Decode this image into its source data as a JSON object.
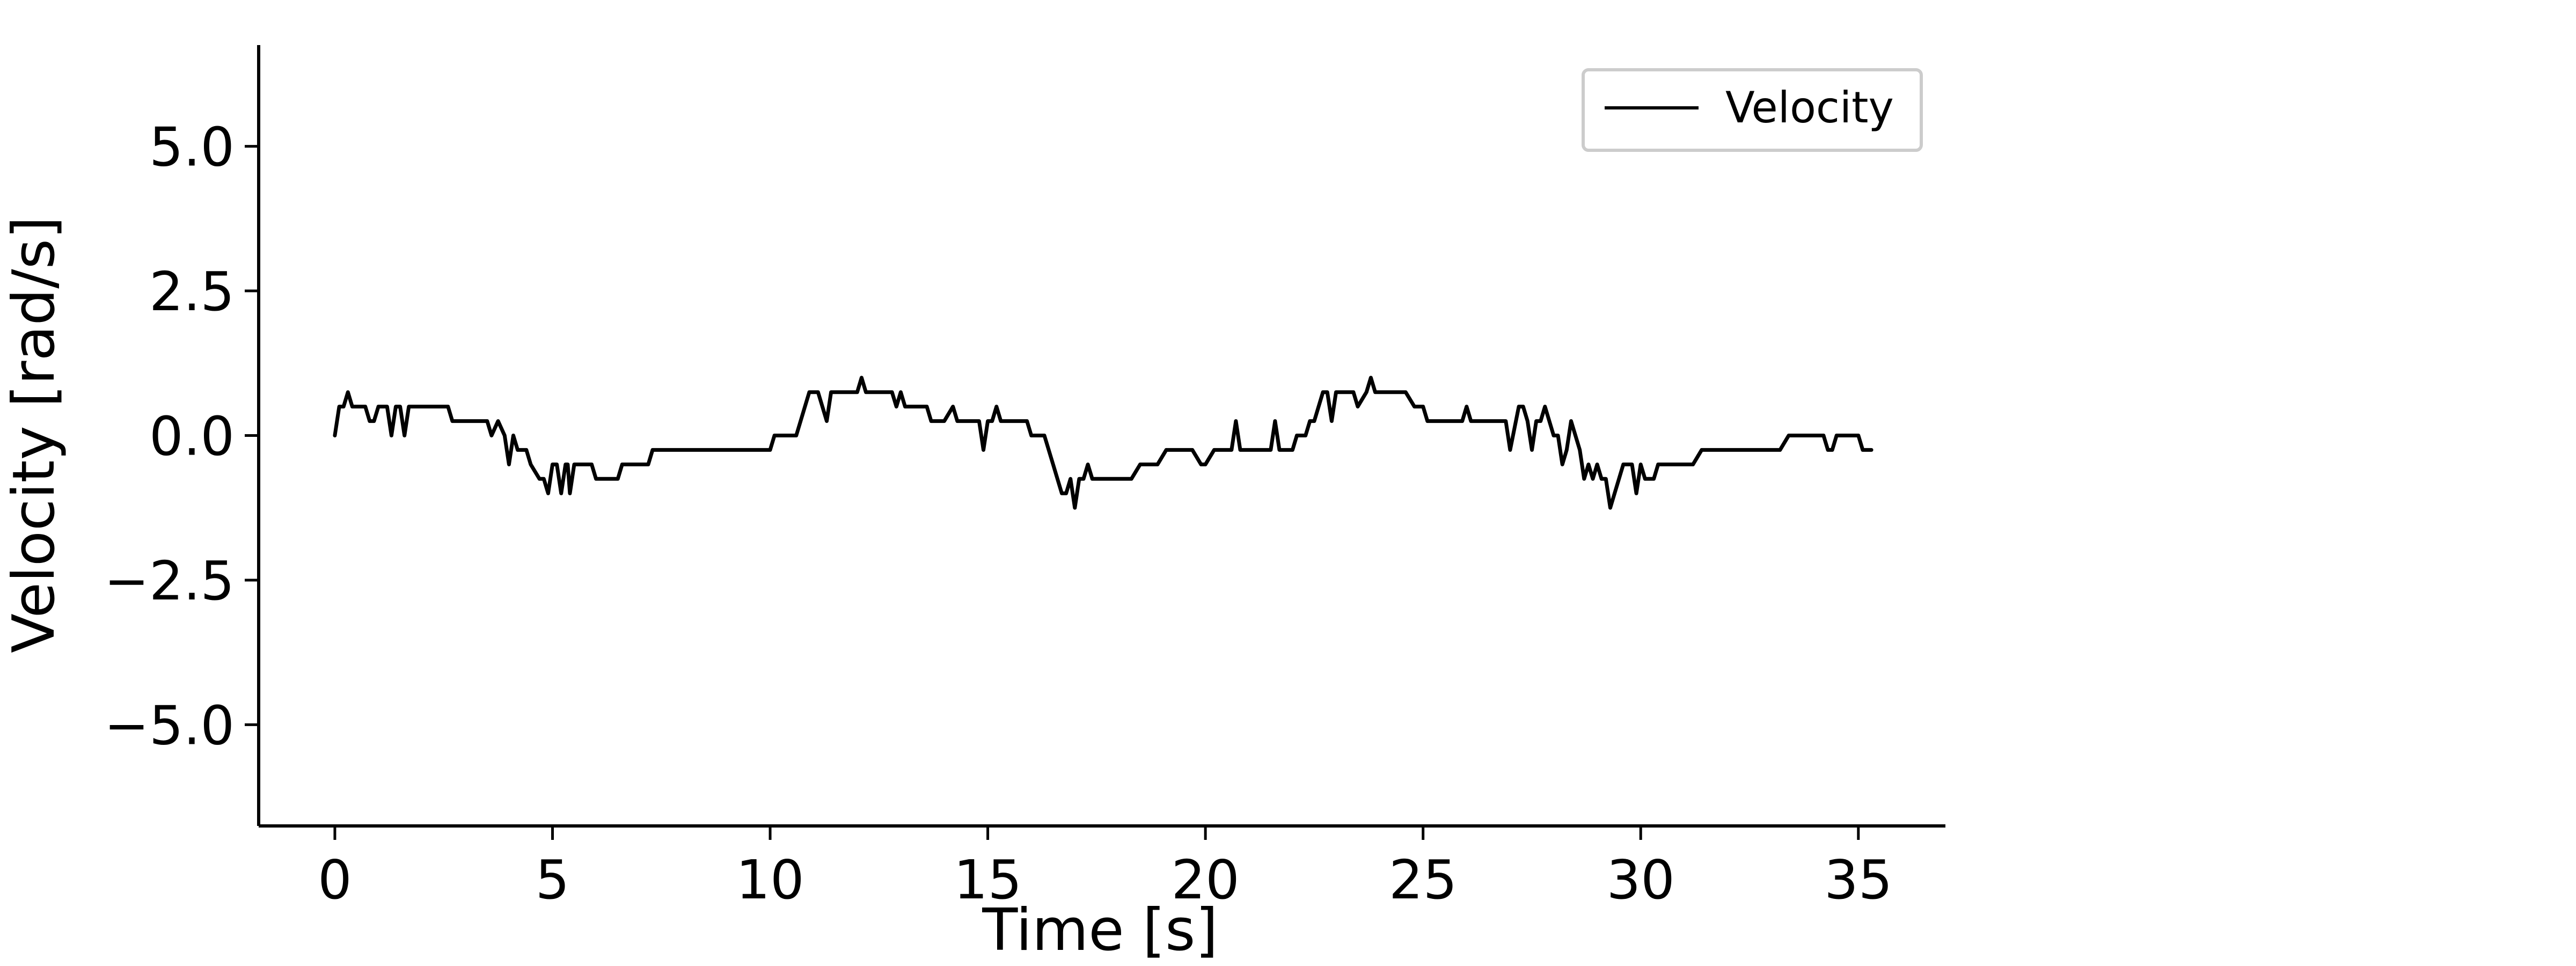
{
  "chart_data": {
    "type": "line",
    "title": "",
    "xlabel": "Time [s]",
    "ylabel": "Velocity [rad/s]",
    "xlim": [
      -1.75,
      37.0
    ],
    "ylim": [
      -6.75,
      6.75
    ],
    "x_ticks": [
      0,
      5,
      10,
      15,
      20,
      25,
      30,
      35
    ],
    "x_tick_labels": [
      "0",
      "5",
      "10",
      "15",
      "20",
      "25",
      "30",
      "35"
    ],
    "y_ticks": [
      5.0,
      2.5,
      0.0,
      -2.5,
      -5.0
    ],
    "y_tick_labels": [
      "5.0",
      "2.5",
      "0.0",
      "−2.5",
      "−5.0"
    ],
    "grid": false,
    "legend_position": "top-right",
    "series": [
      {
        "name": "Velocity",
        "color": "#000000",
        "points": [
          [
            0.0,
            0.0
          ],
          [
            0.1,
            0.5
          ],
          [
            0.2,
            0.5
          ],
          [
            0.3,
            0.75
          ],
          [
            0.4,
            0.5
          ],
          [
            0.7,
            0.5
          ],
          [
            0.8,
            0.25
          ],
          [
            0.9,
            0.25
          ],
          [
            1.0,
            0.5
          ],
          [
            1.2,
            0.5
          ],
          [
            1.3,
            0.0
          ],
          [
            1.4,
            0.5
          ],
          [
            1.5,
            0.5
          ],
          [
            1.6,
            0.0
          ],
          [
            1.7,
            0.5
          ],
          [
            2.6,
            0.5
          ],
          [
            2.7,
            0.25
          ],
          [
            3.5,
            0.25
          ],
          [
            3.6,
            0.0
          ],
          [
            3.75,
            0.25
          ],
          [
            3.9,
            0.0
          ],
          [
            4.0,
            -0.5
          ],
          [
            4.1,
            0.0
          ],
          [
            4.2,
            -0.25
          ],
          [
            4.4,
            -0.25
          ],
          [
            4.5,
            -0.5
          ],
          [
            4.7,
            -0.75
          ],
          [
            4.8,
            -0.75
          ],
          [
            4.9,
            -1.0
          ],
          [
            5.0,
            -0.5
          ],
          [
            5.1,
            -0.5
          ],
          [
            5.2,
            -1.0
          ],
          [
            5.3,
            -0.5
          ],
          [
            5.35,
            -0.5
          ],
          [
            5.4,
            -1.0
          ],
          [
            5.5,
            -0.5
          ],
          [
            5.9,
            -0.5
          ],
          [
            6.0,
            -0.75
          ],
          [
            6.5,
            -0.75
          ],
          [
            6.6,
            -0.5
          ],
          [
            7.2,
            -0.5
          ],
          [
            7.3,
            -0.25
          ],
          [
            10.0,
            -0.25
          ],
          [
            10.1,
            0.0
          ],
          [
            10.6,
            0.0
          ],
          [
            10.9,
            0.75
          ],
          [
            11.1,
            0.75
          ],
          [
            11.3,
            0.25
          ],
          [
            11.4,
            0.75
          ],
          [
            12.0,
            0.75
          ],
          [
            12.1,
            1.0
          ],
          [
            12.2,
            0.75
          ],
          [
            12.8,
            0.75
          ],
          [
            12.9,
            0.5
          ],
          [
            13.0,
            0.75
          ],
          [
            13.1,
            0.5
          ],
          [
            13.6,
            0.5
          ],
          [
            13.7,
            0.25
          ],
          [
            14.0,
            0.25
          ],
          [
            14.2,
            0.5
          ],
          [
            14.3,
            0.25
          ],
          [
            14.8,
            0.25
          ],
          [
            14.9,
            -0.25
          ],
          [
            15.0,
            0.25
          ],
          [
            15.1,
            0.25
          ],
          [
            15.2,
            0.5
          ],
          [
            15.3,
            0.25
          ],
          [
            15.9,
            0.25
          ],
          [
            16.0,
            0.0
          ],
          [
            16.3,
            0.0
          ],
          [
            16.5,
            -0.5
          ],
          [
            16.7,
            -1.0
          ],
          [
            16.8,
            -1.0
          ],
          [
            16.9,
            -0.75
          ],
          [
            17.0,
            -1.25
          ],
          [
            17.1,
            -0.75
          ],
          [
            17.2,
            -0.75
          ],
          [
            17.3,
            -0.5
          ],
          [
            17.4,
            -0.75
          ],
          [
            18.3,
            -0.75
          ],
          [
            18.5,
            -0.5
          ],
          [
            18.9,
            -0.5
          ],
          [
            19.1,
            -0.25
          ],
          [
            19.7,
            -0.25
          ],
          [
            19.9,
            -0.5
          ],
          [
            20.0,
            -0.5
          ],
          [
            20.2,
            -0.25
          ],
          [
            20.6,
            -0.25
          ],
          [
            20.7,
            0.25
          ],
          [
            20.8,
            -0.25
          ],
          [
            21.5,
            -0.25
          ],
          [
            21.6,
            0.25
          ],
          [
            21.7,
            -0.25
          ],
          [
            22.0,
            -0.25
          ],
          [
            22.1,
            0.0
          ],
          [
            22.3,
            0.0
          ],
          [
            22.4,
            0.25
          ],
          [
            22.5,
            0.25
          ],
          [
            22.7,
            0.75
          ],
          [
            22.8,
            0.75
          ],
          [
            22.9,
            0.25
          ],
          [
            23.0,
            0.75
          ],
          [
            23.4,
            0.75
          ],
          [
            23.5,
            0.5
          ],
          [
            23.7,
            0.75
          ],
          [
            23.8,
            1.0
          ],
          [
            23.9,
            0.75
          ],
          [
            24.6,
            0.75
          ],
          [
            24.8,
            0.5
          ],
          [
            25.0,
            0.5
          ],
          [
            25.1,
            0.25
          ],
          [
            25.9,
            0.25
          ],
          [
            26.0,
            0.5
          ],
          [
            26.1,
            0.25
          ],
          [
            26.9,
            0.25
          ],
          [
            27.0,
            -0.25
          ],
          [
            27.2,
            0.5
          ],
          [
            27.3,
            0.5
          ],
          [
            27.4,
            0.25
          ],
          [
            27.5,
            -0.25
          ],
          [
            27.6,
            0.25
          ],
          [
            27.7,
            0.25
          ],
          [
            27.8,
            0.5
          ],
          [
            28.0,
            0.0
          ],
          [
            28.1,
            0.0
          ],
          [
            28.2,
            -0.5
          ],
          [
            28.3,
            -0.25
          ],
          [
            28.4,
            0.25
          ],
          [
            28.5,
            0.0
          ],
          [
            28.6,
            -0.25
          ],
          [
            28.7,
            -0.75
          ],
          [
            28.8,
            -0.5
          ],
          [
            28.9,
            -0.75
          ],
          [
            29.0,
            -0.5
          ],
          [
            29.1,
            -0.75
          ],
          [
            29.2,
            -0.75
          ],
          [
            29.3,
            -1.25
          ],
          [
            29.4,
            -1.0
          ],
          [
            29.6,
            -0.5
          ],
          [
            29.8,
            -0.5
          ],
          [
            29.9,
            -1.0
          ],
          [
            30.0,
            -0.5
          ],
          [
            30.1,
            -0.75
          ],
          [
            30.3,
            -0.75
          ],
          [
            30.4,
            -0.5
          ],
          [
            31.2,
            -0.5
          ],
          [
            31.4,
            -0.25
          ],
          [
            33.2,
            -0.25
          ],
          [
            33.4,
            0.0
          ],
          [
            34.2,
            0.0
          ],
          [
            34.3,
            -0.25
          ],
          [
            34.4,
            -0.25
          ],
          [
            34.5,
            0.0
          ],
          [
            35.0,
            0.0
          ],
          [
            35.1,
            -0.25
          ],
          [
            35.3,
            -0.25
          ]
        ]
      }
    ]
  }
}
